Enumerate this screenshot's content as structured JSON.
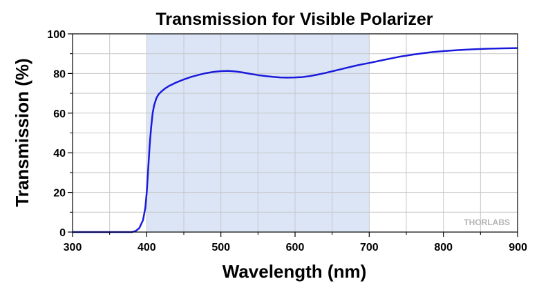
{
  "chart_data": {
    "type": "line",
    "title": "Transmission for Visible Polarizer",
    "xlabel": "Wavelength (nm)",
    "ylabel": "Transmission (%)",
    "xlim": [
      300,
      900
    ],
    "ylim": [
      0,
      100
    ],
    "xticks": [
      300,
      400,
      500,
      600,
      700,
      800,
      900
    ],
    "yticks": [
      0,
      20,
      40,
      60,
      80,
      100
    ],
    "grid": true,
    "highlight_band": {
      "x_start": 400,
      "x_end": 700,
      "color": "#dbe5f6"
    },
    "logo_text": "THORLABS",
    "colors": {
      "series": "#1a1adb",
      "grid": "#c8c8c8",
      "axis": "#000000"
    },
    "series": [
      {
        "x": [
          300,
          350,
          380,
          385,
          390,
          395,
          398,
          400,
          402,
          404,
          406,
          408,
          410,
          413,
          416,
          420,
          425,
          430,
          440,
          450,
          460,
          470,
          480,
          490,
          500,
          510,
          520,
          530,
          540,
          550,
          560,
          570,
          580,
          590,
          600,
          610,
          620,
          630,
          640,
          650,
          660,
          670,
          680,
          690,
          700,
          720,
          740,
          760,
          780,
          800,
          820,
          840,
          860,
          880,
          900
        ],
        "y": [
          0,
          0,
          0,
          0.5,
          2,
          6,
          12,
          20,
          32,
          44,
          53,
          60,
          64,
          67.5,
          69.5,
          71,
          72.5,
          73.7,
          75.5,
          77,
          78.3,
          79.3,
          80.2,
          80.8,
          81.2,
          81.3,
          81,
          80.5,
          79.8,
          79.2,
          78.7,
          78.3,
          78,
          77.9,
          78,
          78.2,
          78.7,
          79.4,
          80.2,
          81.1,
          82,
          82.9,
          83.8,
          84.6,
          85.3,
          86.9,
          88.4,
          89.6,
          90.6,
          91.3,
          91.8,
          92.2,
          92.5,
          92.7,
          92.8
        ]
      }
    ]
  }
}
